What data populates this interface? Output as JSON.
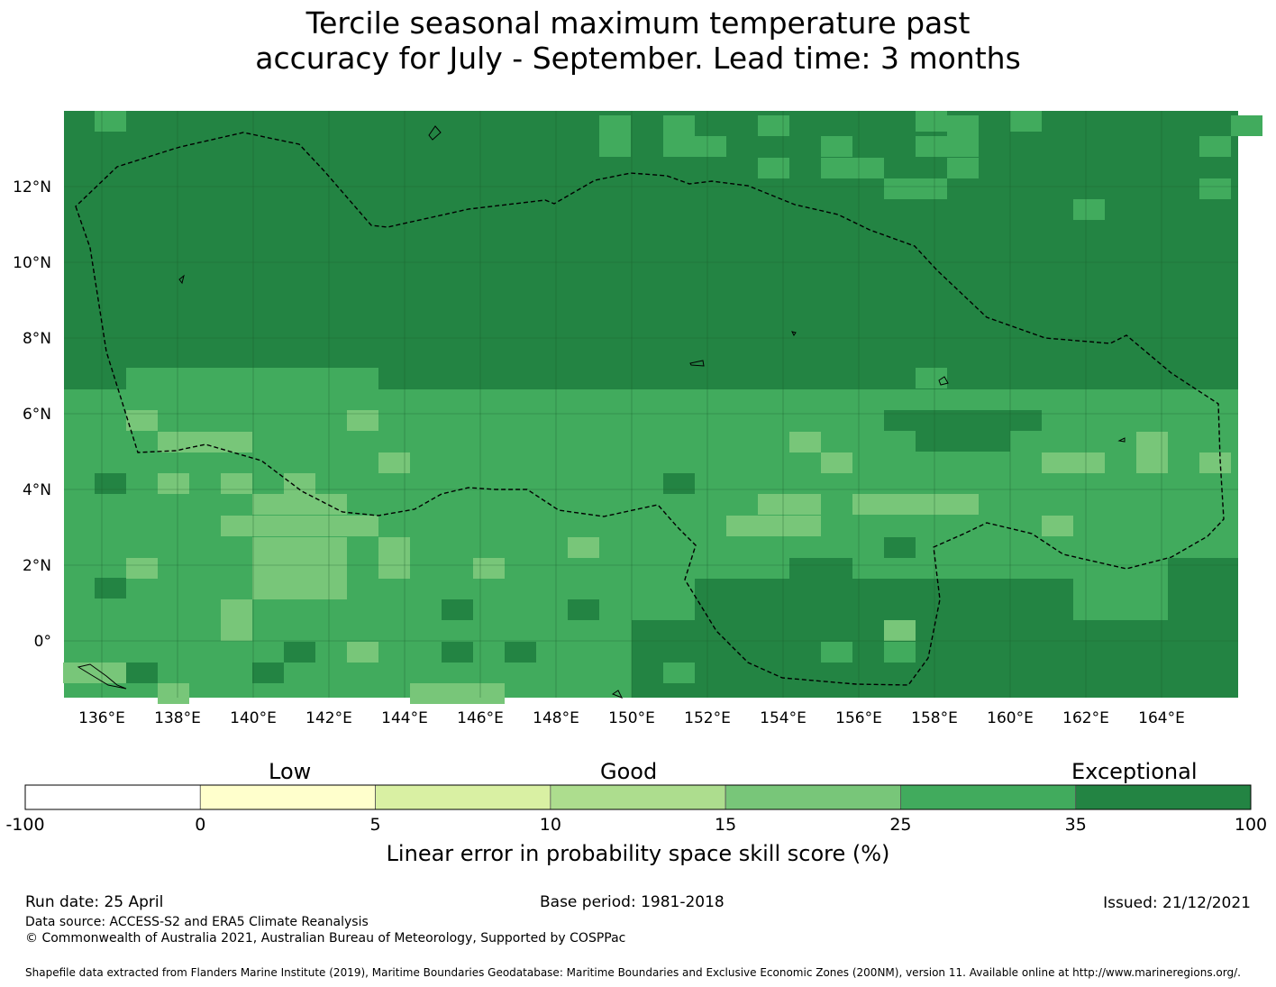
{
  "title_line1": "Tercile seasonal maximum temperature past",
  "title_line2": "accuracy for July - September. Lead time: 3 months",
  "map": {
    "lon_ticks": [
      "136°E",
      "138°E",
      "140°E",
      "142°E",
      "144°E",
      "146°E",
      "148°E",
      "150°E",
      "152°E",
      "154°E",
      "156°E",
      "158°E",
      "160°E",
      "162°E",
      "164°E"
    ],
    "lat_ticks": [
      "12°N",
      "10°N",
      "8°N",
      "6°N",
      "4°N",
      "2°N",
      "0°"
    ]
  },
  "legend": {
    "categories": [
      "Low",
      "Good",
      "Exceptional"
    ],
    "ticks": [
      "-100",
      "0",
      "5",
      "10",
      "15",
      "25",
      "35",
      "100"
    ],
    "colors": [
      "#ffffff",
      "#ffffcc",
      "#d9f0a3",
      "#addd8e",
      "#78c679",
      "#41ab5d",
      "#238443"
    ],
    "label": "Linear error in probability space skill score (%)"
  },
  "footer": {
    "run_date": "Run date: 25 April",
    "base_period": "Base period: 1981-2018",
    "issued": "Issued: 21/12/2021",
    "data_source": "Data source: ACCESS-S2 and ERA5 Climate Reanalysis",
    "copyright": "© Commonwealth of Australia 2021, Australian Bureau of Meteorology, Supported by COSPPac",
    "shapefile": "Shapefile data extracted from Flanders Marine Institute (2019), Maritime Boundaries Geodatabase: Maritime Boundaries and Exclusive Economic Zones (200NM), version 11. Available online at http://www.marineregions.org/."
  }
}
